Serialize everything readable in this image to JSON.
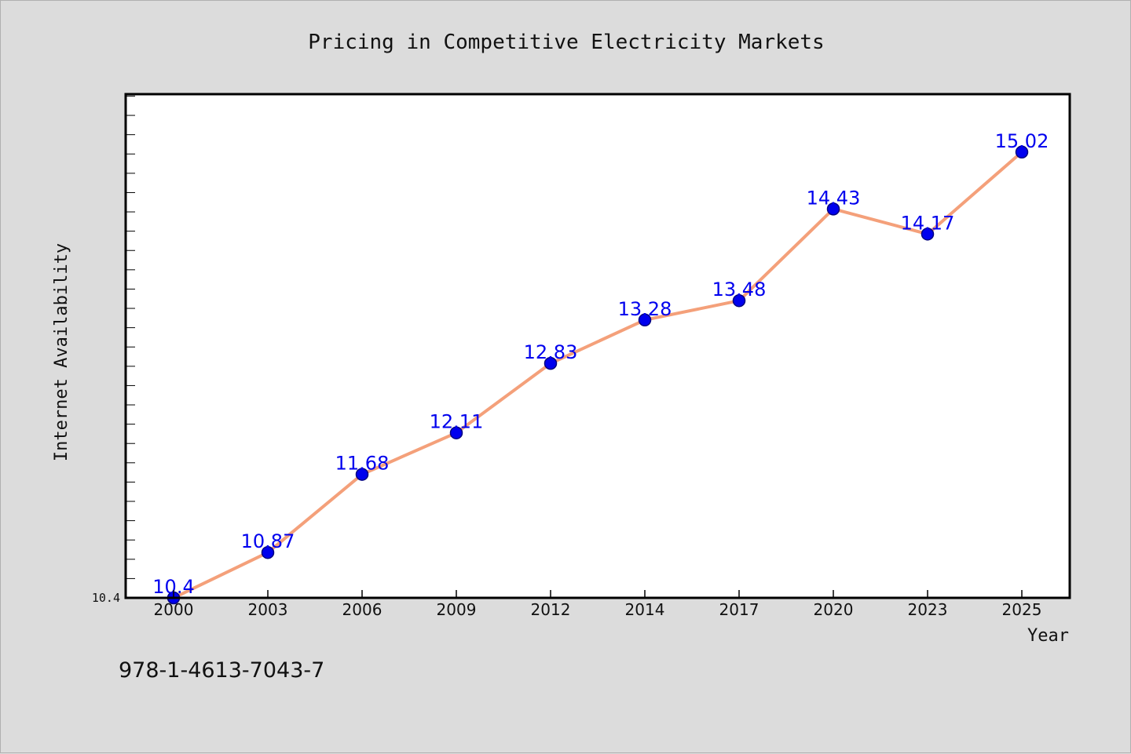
{
  "chart_data": {
    "type": "line",
    "title": "Pricing in Competitive Electricity Markets",
    "xlabel": "Year",
    "ylabel": "Internet Availability",
    "categories": [
      "2000",
      "2003",
      "2006",
      "2009",
      "2012",
      "2014",
      "2017",
      "2020",
      "2023",
      "2025"
    ],
    "series": [
      {
        "values": [
          10.4,
          10.87,
          11.68,
          12.11,
          12.83,
          13.28,
          13.48,
          14.43,
          14.17,
          15.02
        ],
        "labels": [
          "10.4",
          "10.87",
          "11.68",
          "12.11",
          "12.83",
          "13.28",
          "13.48",
          "14.43",
          "14.17",
          "15.02"
        ]
      }
    ],
    "ylim": [
      10.4,
      15.62
    ],
    "ytick_labels": [
      "10.4"
    ],
    "grid": false,
    "colors": {
      "line": "#f4a07a",
      "marker": "#0000ee",
      "marker_edge": "#000080",
      "label": "#0000ee",
      "plot_bg": "#ffffff",
      "figure_bg": "#dcdcdc"
    }
  },
  "footer": {
    "isbn": "978-1-4613-7043-7"
  }
}
